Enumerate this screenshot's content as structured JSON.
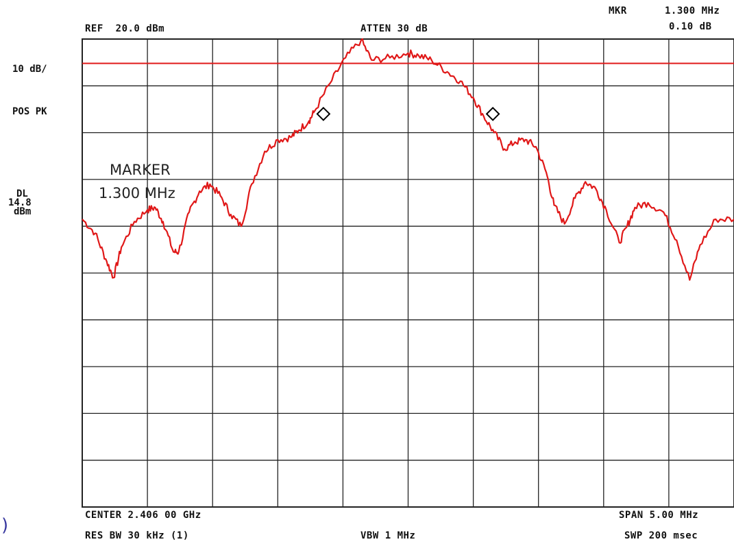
{
  "header": {
    "ref": "REF  20.0 dBm",
    "atten": "ATTEN 30 dB",
    "mkr_label": "MKR",
    "mkr_freq": "1.300 MHz",
    "mkr_level": "0.10 dB"
  },
  "left_panel": {
    "scale": "10 dB/",
    "detector": "POS PK",
    "dl_label": "DL",
    "dl_value": "14.8",
    "dl_unit": "dBm"
  },
  "annotation": {
    "title": "MARKER",
    "value": "1.300 MHz"
  },
  "footer": {
    "center": "CENTER 2.406 00 GHz",
    "span": "SPAN 5.00 MHz",
    "res_bw": "RES BW 30 kHz (1)",
    "vbw": "VBW 1 MHz",
    "sweep": "SWP 200 msec"
  },
  "colors": {
    "trace": "#e01818",
    "display_line": "#e01818",
    "grid": "#222222",
    "marker": "#000000"
  },
  "chart_data": {
    "type": "line",
    "x_units": "MHz",
    "y_units": "dBm",
    "xlim": [
      2403.5,
      2408.5
    ],
    "ylim": [
      -80,
      20
    ],
    "grid": true,
    "display_line": 14.8,
    "series": [
      {
        "values": [
          [
            2403.5,
            -18.5
          ],
          [
            2403.6,
            -21.5
          ],
          [
            2403.68,
            -27.0
          ],
          [
            2403.74,
            -31.0
          ],
          [
            2403.8,
            -24.5
          ],
          [
            2403.9,
            -19.0
          ],
          [
            2404.0,
            -16.5
          ],
          [
            2404.06,
            -16.0
          ],
          [
            2404.12,
            -19.0
          ],
          [
            2404.2,
            -25.5
          ],
          [
            2404.24,
            -25.5
          ],
          [
            2404.32,
            -17.0
          ],
          [
            2404.4,
            -12.5
          ],
          [
            2404.48,
            -11.0
          ],
          [
            2404.56,
            -13.5
          ],
          [
            2404.64,
            -17.5
          ],
          [
            2404.72,
            -20.0
          ],
          [
            2404.8,
            -11.0
          ],
          [
            2404.9,
            -4.0
          ],
          [
            2405.0,
            -1.5
          ],
          [
            2405.1,
            -1.0
          ],
          [
            2405.16,
            0.5
          ],
          [
            2405.24,
            2.5
          ],
          [
            2405.28,
            4.5
          ],
          [
            2405.4,
            10.5
          ],
          [
            2405.52,
            16.0
          ],
          [
            2405.64,
            19.8
          ],
          [
            2405.72,
            15.5
          ],
          [
            2405.86,
            16.0
          ],
          [
            2406.0,
            17.0
          ],
          [
            2406.08,
            16.5
          ],
          [
            2406.18,
            15.5
          ],
          [
            2406.3,
            13.0
          ],
          [
            2406.4,
            11.0
          ],
          [
            2406.5,
            7.5
          ],
          [
            2406.58,
            3.5
          ],
          [
            2406.66,
            0.0
          ],
          [
            2406.74,
            -3.5
          ],
          [
            2406.82,
            -2.0
          ],
          [
            2406.9,
            -1.5
          ],
          [
            2406.98,
            -3.0
          ],
          [
            2407.06,
            -8.5
          ],
          [
            2407.12,
            -15.5
          ],
          [
            2407.2,
            -19.5
          ],
          [
            2407.28,
            -14.0
          ],
          [
            2407.36,
            -10.5
          ],
          [
            2407.44,
            -12.0
          ],
          [
            2407.52,
            -16.5
          ],
          [
            2407.62,
            -23.5
          ],
          [
            2407.68,
            -20.0
          ],
          [
            2407.74,
            -16.0
          ],
          [
            2407.84,
            -15.0
          ],
          [
            2407.96,
            -17.0
          ],
          [
            2408.06,
            -23.0
          ],
          [
            2408.16,
            -31.5
          ],
          [
            2408.24,
            -24.0
          ],
          [
            2408.36,
            -18.5
          ],
          [
            2408.5,
            -18.5
          ]
        ]
      }
    ],
    "markers": [
      {
        "x": 2405.35,
        "y": 4.0
      },
      {
        "x": 2406.65,
        "y": 4.0
      }
    ]
  }
}
